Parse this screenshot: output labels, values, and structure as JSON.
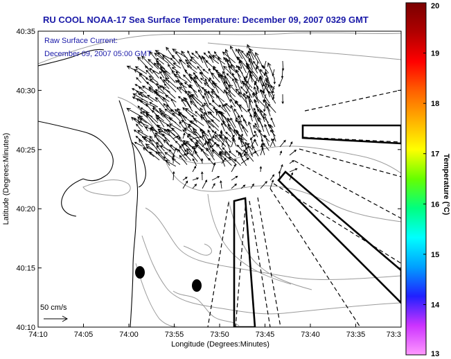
{
  "title": "RU COOL  NOAA-17  Sea Surface Temperature:  December 09, 2007 0329 GMT",
  "notes": {
    "line1": "Raw Surface Current:",
    "line2": "December 09, 2007 05:00 GMT"
  },
  "x_axis": {
    "label": "Longitude (Degrees:Minutes)",
    "ticks": [
      "74:10",
      "74:05",
      "74:00",
      "73:55",
      "73:50",
      "73:45",
      "73:40",
      "73:35",
      "73:3"
    ]
  },
  "y_axis": {
    "label": "Latitude (Degrees:Minutes)",
    "ticks": [
      "40:35",
      "40:30",
      "40:25",
      "40:20",
      "40:15",
      "40:10"
    ]
  },
  "scale_arrow": {
    "label": "50 cm/s"
  },
  "colorbar": {
    "label": "Temperature (°C)",
    "ticks": [
      "20",
      "19",
      "18",
      "17",
      "16",
      "15",
      "14",
      "13"
    ],
    "min": 13,
    "max": 20,
    "colors": [
      "#ff99ff",
      "#cc33ff",
      "#2020ff",
      "#00a0ff",
      "#00ffff",
      "#00ff80",
      "#66ff00",
      "#ffff00",
      "#ffb000",
      "#ff6000",
      "#ff0000",
      "#b00000",
      "#7a0000"
    ]
  },
  "map": {
    "background": "#ffffff",
    "contour_color": "#9a9a9a",
    "markers": 2
  }
}
